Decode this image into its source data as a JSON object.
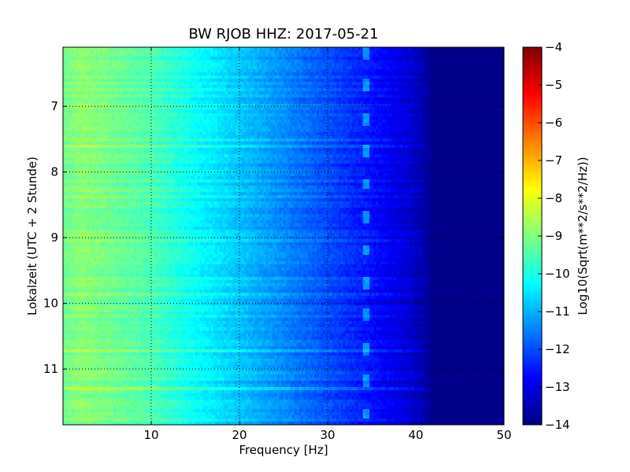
{
  "chart_data": {
    "type": "heatmap",
    "title": "BW RJOB HHZ: 2017-05-21",
    "xlabel": "Frequency [Hz]",
    "ylabel": "Lokalzeit (UTC + 2 Stunde)",
    "xlim": [
      0,
      50
    ],
    "ylim": [
      6.1,
      11.85
    ],
    "y_inverted": true,
    "x_ticks": [
      10,
      20,
      30,
      40,
      50
    ],
    "x_tick_labels": [
      "10",
      "20",
      "30",
      "40",
      "50"
    ],
    "y_ticks": [
      7,
      8,
      9,
      10,
      11
    ],
    "y_tick_labels": [
      "7",
      "8",
      "9",
      "10",
      "11"
    ],
    "grid": true,
    "colormap": "jet",
    "colorbar": {
      "label": "Log10(Sqrt(m**2/s**2/Hz))",
      "range": [
        -14,
        -4
      ],
      "ticks": [
        -4,
        -5,
        -6,
        -7,
        -8,
        -9,
        -10,
        -11,
        -12,
        -13,
        -14
      ],
      "tick_labels": [
        "−4",
        "−5",
        "−6",
        "−7",
        "−8",
        "−9",
        "−10",
        "−11",
        "−12",
        "−13",
        "−14"
      ]
    },
    "spectral_profile": {
      "frequency_hz": [
        0,
        2,
        5,
        10,
        15,
        20,
        25,
        30,
        35,
        38,
        40,
        41,
        42,
        50
      ],
      "log_amplitude": [
        -9.2,
        -8.9,
        -9.1,
        -9.5,
        -10.2,
        -10.8,
        -11.4,
        -12.0,
        -12.6,
        -13.0,
        -13.3,
        -13.6,
        -13.9,
        -13.9
      ]
    },
    "narrowband_line_hz": 34.3
  }
}
